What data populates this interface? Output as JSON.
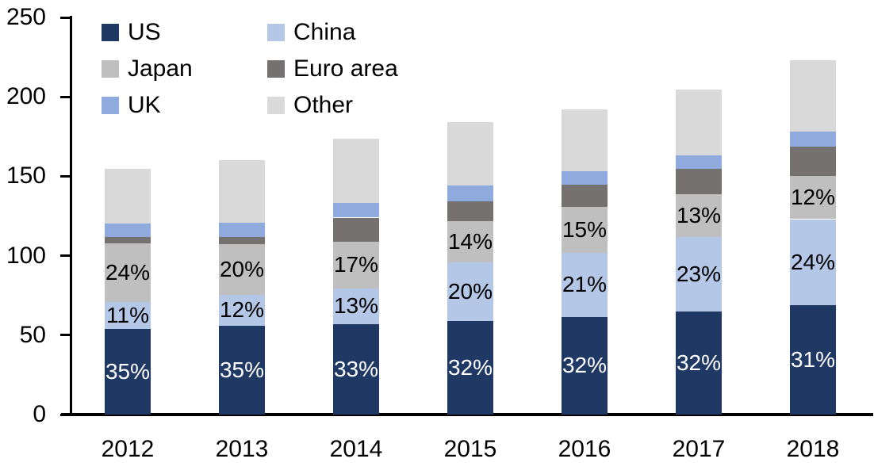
{
  "chart_data": {
    "type": "bar",
    "subtype": "stacked",
    "title": "",
    "xlabel": "",
    "ylabel": "",
    "ylim": [
      0,
      250
    ],
    "grid": false,
    "legend_position": "top-left",
    "categories": [
      "2012",
      "2013",
      "2014",
      "2015",
      "2016",
      "2017",
      "2018"
    ],
    "y_ticks": [
      0,
      50,
      100,
      150,
      200,
      250
    ],
    "y_tick_labels": [
      "0",
      "50",
      "100",
      "150",
      "200",
      "250"
    ],
    "totals": [
      154.5,
      160,
      173.5,
      184,
      192,
      204.5,
      223
    ],
    "series": [
      {
        "name": "US",
        "color": "#1F3864",
        "values": [
          54,
          56,
          57,
          59,
          61.5,
          65,
          69
        ],
        "labels": [
          "35%",
          "35%",
          "33%",
          "32%",
          "32%",
          "32%",
          "31%"
        ],
        "label_color": "#FFFFFF"
      },
      {
        "name": "China",
        "color": "#B4C7E7",
        "values": [
          17,
          19.5,
          22.5,
          37,
          40.5,
          47,
          54
        ],
        "labels": [
          "11%",
          "12%",
          "13%",
          "20%",
          "21%",
          "23%",
          "24%"
        ],
        "label_color": "#000000"
      },
      {
        "name": "Japan",
        "color": "#BFBFBF",
        "values": [
          37,
          32,
          29.5,
          26,
          28.5,
          26.5,
          27
        ],
        "labels": [
          "24%",
          "20%",
          "17%",
          "14%",
          "15%",
          "13%",
          "12%"
        ],
        "label_color": "#000000"
      },
      {
        "name": "Euro area",
        "color": "#767171",
        "values": [
          4,
          4.5,
          15,
          12,
          14,
          16,
          18.5
        ],
        "labels": null,
        "label_color": null
      },
      {
        "name": "UK",
        "color": "#8FAADC",
        "values": [
          8.5,
          9,
          9,
          10,
          8.5,
          8.5,
          9.5
        ],
        "labels": null,
        "label_color": null
      },
      {
        "name": "Other",
        "color": "#D9D9D9",
        "values": [
          34,
          39,
          40.5,
          40,
          39,
          41.5,
          45
        ],
        "labels": null,
        "label_color": null
      }
    ],
    "legend_order": [
      "US",
      "China",
      "Japan",
      "Euro area",
      "UK",
      "Other"
    ],
    "axis_color": "#000000"
  }
}
